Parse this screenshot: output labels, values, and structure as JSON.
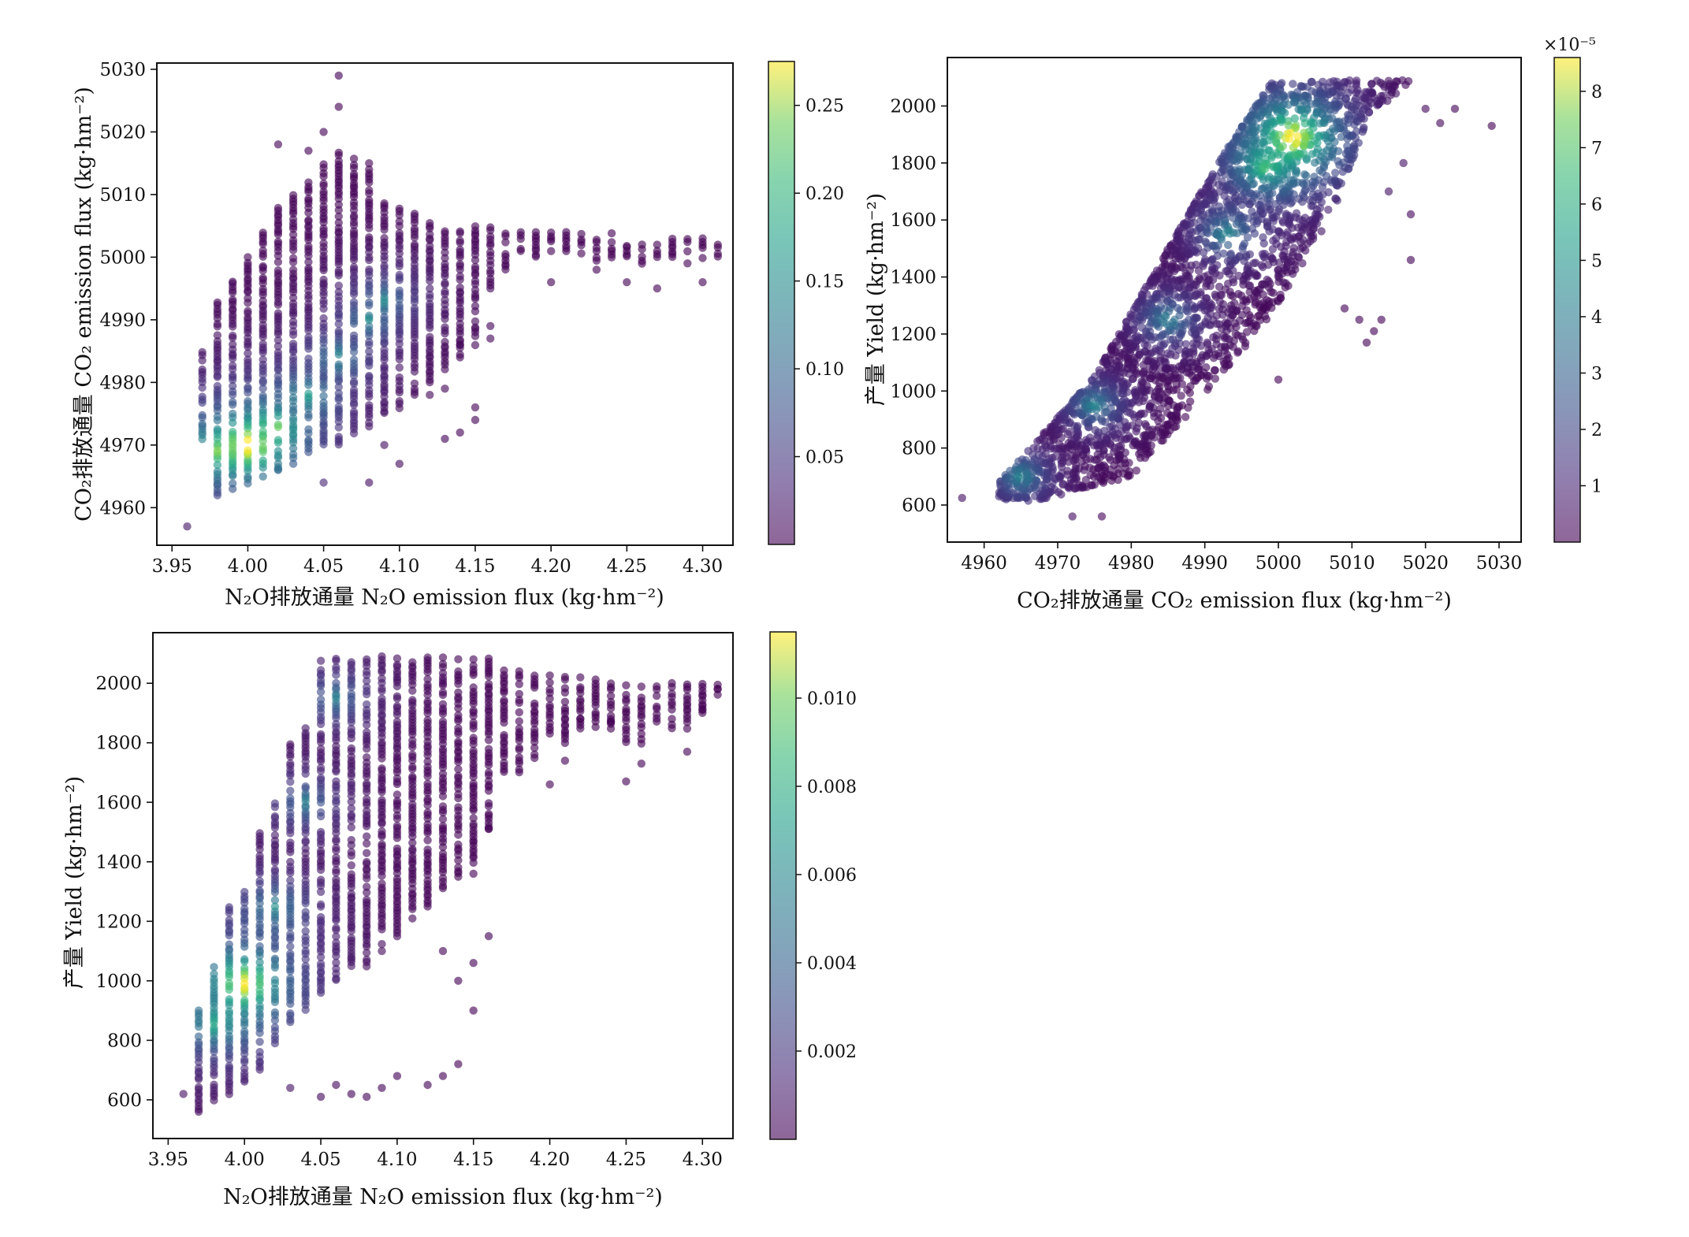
{
  "chart_data": [
    {
      "id": "a",
      "type": "scatter",
      "density_colored": true,
      "colormap": "viridis",
      "xlabel": "N₂O排放通量 N₂O emission flux (kg·hm⁻²)",
      "ylabel": "CO₂排放通量 CO₂ emission flux (kg·hm⁻²)",
      "xlim": [
        3.94,
        4.32
      ],
      "ylim": [
        4954,
        5031
      ],
      "xticks": [
        3.95,
        4.0,
        4.05,
        4.1,
        4.15,
        4.2,
        4.25,
        4.3
      ],
      "xtick_labels": [
        "3.95",
        "4.00",
        "4.05",
        "4.10",
        "4.15",
        "4.20",
        "4.25",
        "4.30"
      ],
      "yticks": [
        4960,
        4970,
        4980,
        4990,
        5000,
        5010,
        5020,
        5030
      ],
      "ytick_labels": [
        "4960",
        "4970",
        "4980",
        "4990",
        "5000",
        "5010",
        "5020",
        "5030"
      ],
      "x_columns": [
        3.97,
        3.98,
        3.99,
        4.0,
        4.01,
        4.02,
        4.03,
        4.04,
        4.05,
        4.06,
        4.07,
        4.08,
        4.09,
        4.1,
        4.11,
        4.12,
        4.13,
        4.14,
        4.15,
        4.16,
        4.17,
        4.18,
        4.19,
        4.2,
        4.21,
        4.22,
        4.23,
        4.24,
        4.25,
        4.26,
        4.27,
        4.28,
        4.29,
        4.3,
        4.31
      ],
      "column_y_min": [
        4971,
        4962,
        4963,
        4963,
        4965,
        4966,
        4968,
        4969,
        4970,
        4970,
        4972,
        4973,
        4975,
        4976,
        4978,
        4980,
        4982,
        4984,
        4986,
        4995,
        4998,
        5000,
        5000,
        5001,
        5001,
        5000,
        4999,
        5000,
        5000,
        4999,
        5000,
        5000,
        5001,
        5000,
        5000
      ],
      "column_y_max": [
        4985,
        4993,
        4997,
        5000,
        5004,
        5008,
        5010,
        5012,
        5015,
        5017,
        5016,
        5014,
        5009,
        5008,
        5007,
        5006,
        5005,
        5005,
        5005,
        5005,
        5004,
        5004,
        5004,
        5004,
        5004,
        5004,
        5004,
        5004,
        5003,
        5003,
        5003,
        5003,
        5003,
        5003,
        5002
      ],
      "outliers": [
        [
          3.96,
          4957
        ],
        [
          4.0,
          5000
        ],
        [
          4.02,
          5018
        ],
        [
          4.04,
          5017
        ],
        [
          4.06,
          5029
        ],
        [
          4.06,
          5024
        ],
        [
          4.05,
          5020
        ],
        [
          4.08,
          5015
        ],
        [
          4.02,
          4966
        ],
        [
          4.03,
          4967
        ],
        [
          4.05,
          4964
        ],
        [
          4.08,
          4964
        ],
        [
          4.1,
          4967
        ],
        [
          4.09,
          4970
        ],
        [
          4.13,
          4971
        ],
        [
          4.14,
          4972
        ],
        [
          4.15,
          4974
        ],
        [
          4.15,
          4976
        ],
        [
          4.16,
          4987
        ],
        [
          4.16,
          4989
        ],
        [
          4.14,
          4986
        ],
        [
          4.12,
          4978
        ],
        [
          4.13,
          4979
        ],
        [
          4.2,
          4996
        ],
        [
          4.25,
          4996
        ],
        [
          4.27,
          4995
        ],
        [
          4.3,
          4996
        ],
        [
          4.23,
          4998
        ],
        [
          4.29,
          4999
        ]
      ],
      "density_peak": [
        4.0,
        4970
      ],
      "density_ridge": [
        [
          3.98,
          4969
        ],
        [
          4.0,
          4970
        ],
        [
          4.02,
          4973
        ],
        [
          4.04,
          4978
        ],
        [
          4.06,
          4984
        ],
        [
          4.08,
          4990
        ],
        [
          4.09,
          4993
        ]
      ],
      "colorbar": {
        "min": 0.0,
        "max": 0.275,
        "ticks": [
          0.05,
          0.1,
          0.15,
          0.2,
          0.25
        ],
        "tick_labels": [
          "0.05",
          "0.10",
          "0.15",
          "0.20",
          "0.25"
        ],
        "offset_label": ""
      }
    },
    {
      "id": "b",
      "type": "scatter",
      "density_colored": true,
      "colormap": "viridis",
      "xlabel": "CO₂排放通量 CO₂ emission flux (kg·hm⁻²)",
      "ylabel": "产量 Yield (kg·hm⁻²)",
      "xlim": [
        4955,
        5033
      ],
      "ylim": [
        470,
        2170
      ],
      "xticks": [
        4960,
        4970,
        4980,
        4990,
        5000,
        5010,
        5020,
        5030
      ],
      "xtick_labels": [
        "4960",
        "4970",
        "4980",
        "4990",
        "5000",
        "5010",
        "5020",
        "5030"
      ],
      "yticks": [
        600,
        800,
        1000,
        1200,
        1400,
        1600,
        1800,
        2000
      ],
      "ytick_labels": [
        "600",
        "800",
        "1000",
        "1200",
        "1400",
        "1600",
        "1800",
        "2000"
      ],
      "band_lower_edge": [
        [
          4957,
          620
        ],
        [
          4968,
          620
        ],
        [
          4980,
          700
        ],
        [
          4990,
          980
        ],
        [
          5000,
          1300
        ],
        [
          5008,
          1650
        ],
        [
          5012,
          1950
        ],
        [
          5018,
          2080
        ]
      ],
      "band_upper_edge": [
        [
          4962,
          680
        ],
        [
          4975,
          1050
        ],
        [
          4985,
          1500
        ],
        [
          4993,
          1850
        ],
        [
          4999,
          2080
        ],
        [
          5010,
          2090
        ]
      ],
      "y_cap": 2090,
      "outliers": [
        [
          4957,
          625
        ],
        [
          4963,
          620
        ],
        [
          4966,
          615
        ],
        [
          4972,
          560
        ],
        [
          4976,
          560
        ],
        [
          5020,
          1990
        ],
        [
          5022,
          1940
        ],
        [
          5024,
          1990
        ],
        [
          5029,
          1930
        ],
        [
          5018,
          1620
        ],
        [
          5015,
          1700
        ],
        [
          5017,
          1800
        ],
        [
          5012,
          1170
        ],
        [
          5009,
          1290
        ],
        [
          5011,
          1250
        ],
        [
          5018,
          1460
        ],
        [
          5014,
          1250
        ],
        [
          5013,
          1210
        ],
        [
          5000,
          1040
        ]
      ],
      "density_peak": [
        5002,
        1880
      ],
      "density_ridge": [
        [
          4965,
          700
        ],
        [
          4975,
          950
        ],
        [
          4985,
          1250
        ],
        [
          4993,
          1550
        ],
        [
          4998,
          1780
        ],
        [
          5002,
          1900
        ]
      ],
      "colorbar": {
        "min": 0.0,
        "max": 8.6,
        "ticks": [
          1,
          2,
          3,
          4,
          5,
          6,
          7,
          8
        ],
        "tick_labels": [
          "1",
          "2",
          "3",
          "4",
          "5",
          "6",
          "7",
          "8"
        ],
        "offset_label": "×10⁻⁵"
      }
    },
    {
      "id": "c",
      "type": "scatter",
      "density_colored": true,
      "colormap": "viridis",
      "xlabel": "N₂O排放通量 N₂O emission flux (kg·hm⁻²)",
      "ylabel": "产量 Yield (kg·hm⁻²)",
      "xlim": [
        3.94,
        4.32
      ],
      "ylim": [
        470,
        2170
      ],
      "xticks": [
        3.95,
        4.0,
        4.05,
        4.1,
        4.15,
        4.2,
        4.25,
        4.3
      ],
      "xtick_labels": [
        "3.95",
        "4.00",
        "4.05",
        "4.10",
        "4.15",
        "4.20",
        "4.25",
        "4.30"
      ],
      "yticks": [
        600,
        800,
        1000,
        1200,
        1400,
        1600,
        1800,
        2000
      ],
      "ytick_labels": [
        "600",
        "800",
        "1000",
        "1200",
        "1400",
        "1600",
        "1800",
        "2000"
      ],
      "x_columns": [
        3.97,
        3.98,
        3.99,
        4.0,
        4.01,
        4.02,
        4.03,
        4.04,
        4.05,
        4.06,
        4.07,
        4.08,
        4.09,
        4.1,
        4.11,
        4.12,
        4.13,
        4.14,
        4.15,
        4.16,
        4.17,
        4.18,
        4.19,
        4.2,
        4.21,
        4.22,
        4.23,
        4.24,
        4.25,
        4.26,
        4.27,
        4.28,
        4.29,
        4.3,
        4.31
      ],
      "column_y_min": [
        560,
        590,
        620,
        660,
        700,
        790,
        860,
        900,
        960,
        1000,
        1050,
        1050,
        1100,
        1150,
        1200,
        1250,
        1300,
        1350,
        1400,
        1500,
        1700,
        1700,
        1750,
        1800,
        1800,
        1850,
        1850,
        1850,
        1800,
        1800,
        1850,
        1850,
        1850,
        1900,
        1950
      ],
      "column_y_max": [
        950,
        1050,
        1250,
        1300,
        1500,
        1600,
        1800,
        1850,
        2090,
        2090,
        2090,
        2090,
        2090,
        2090,
        2090,
        2090,
        2090,
        2090,
        2090,
        2090,
        2050,
        2050,
        2040,
        2030,
        2030,
        2020,
        2010,
        2000,
        2000,
        2000,
        2000,
        2000,
        2000,
        2000,
        2000
      ],
      "outliers": [
        [
          3.96,
          620
        ],
        [
          4.03,
          640
        ],
        [
          4.05,
          610
        ],
        [
          4.06,
          650
        ],
        [
          4.07,
          620
        ],
        [
          4.08,
          610
        ],
        [
          4.09,
          640
        ],
        [
          4.1,
          680
        ],
        [
          4.12,
          650
        ],
        [
          4.13,
          680
        ],
        [
          4.14,
          720
        ],
        [
          4.15,
          900
        ],
        [
          4.14,
          1000
        ],
        [
          4.16,
          1150
        ],
        [
          4.15,
          1360
        ],
        [
          4.16,
          1510
        ],
        [
          4.15,
          1060
        ],
        [
          4.13,
          1100
        ],
        [
          4.18,
          1710
        ],
        [
          4.2,
          1660
        ],
        [
          4.21,
          1740
        ],
        [
          4.25,
          1670
        ],
        [
          4.26,
          1730
        ],
        [
          4.29,
          1770
        ],
        [
          4.3,
          1910
        ],
        [
          4.31,
          1980
        ],
        [
          4.22,
          1880
        ],
        [
          4.24,
          1870
        ]
      ],
      "density_peak": [
        4.0,
        980
      ],
      "density_ridge": [
        [
          3.98,
          850
        ],
        [
          4.0,
          1000
        ],
        [
          4.02,
          1250
        ],
        [
          4.04,
          1600
        ],
        [
          4.06,
          1950
        ]
      ],
      "colorbar": {
        "min": 0.0,
        "max": 0.0115,
        "ticks": [
          0.002,
          0.004,
          0.006,
          0.008,
          0.01
        ],
        "tick_labels": [
          "0.002",
          "0.004",
          "0.006",
          "0.008",
          "0.010"
        ],
        "offset_label": ""
      }
    }
  ]
}
